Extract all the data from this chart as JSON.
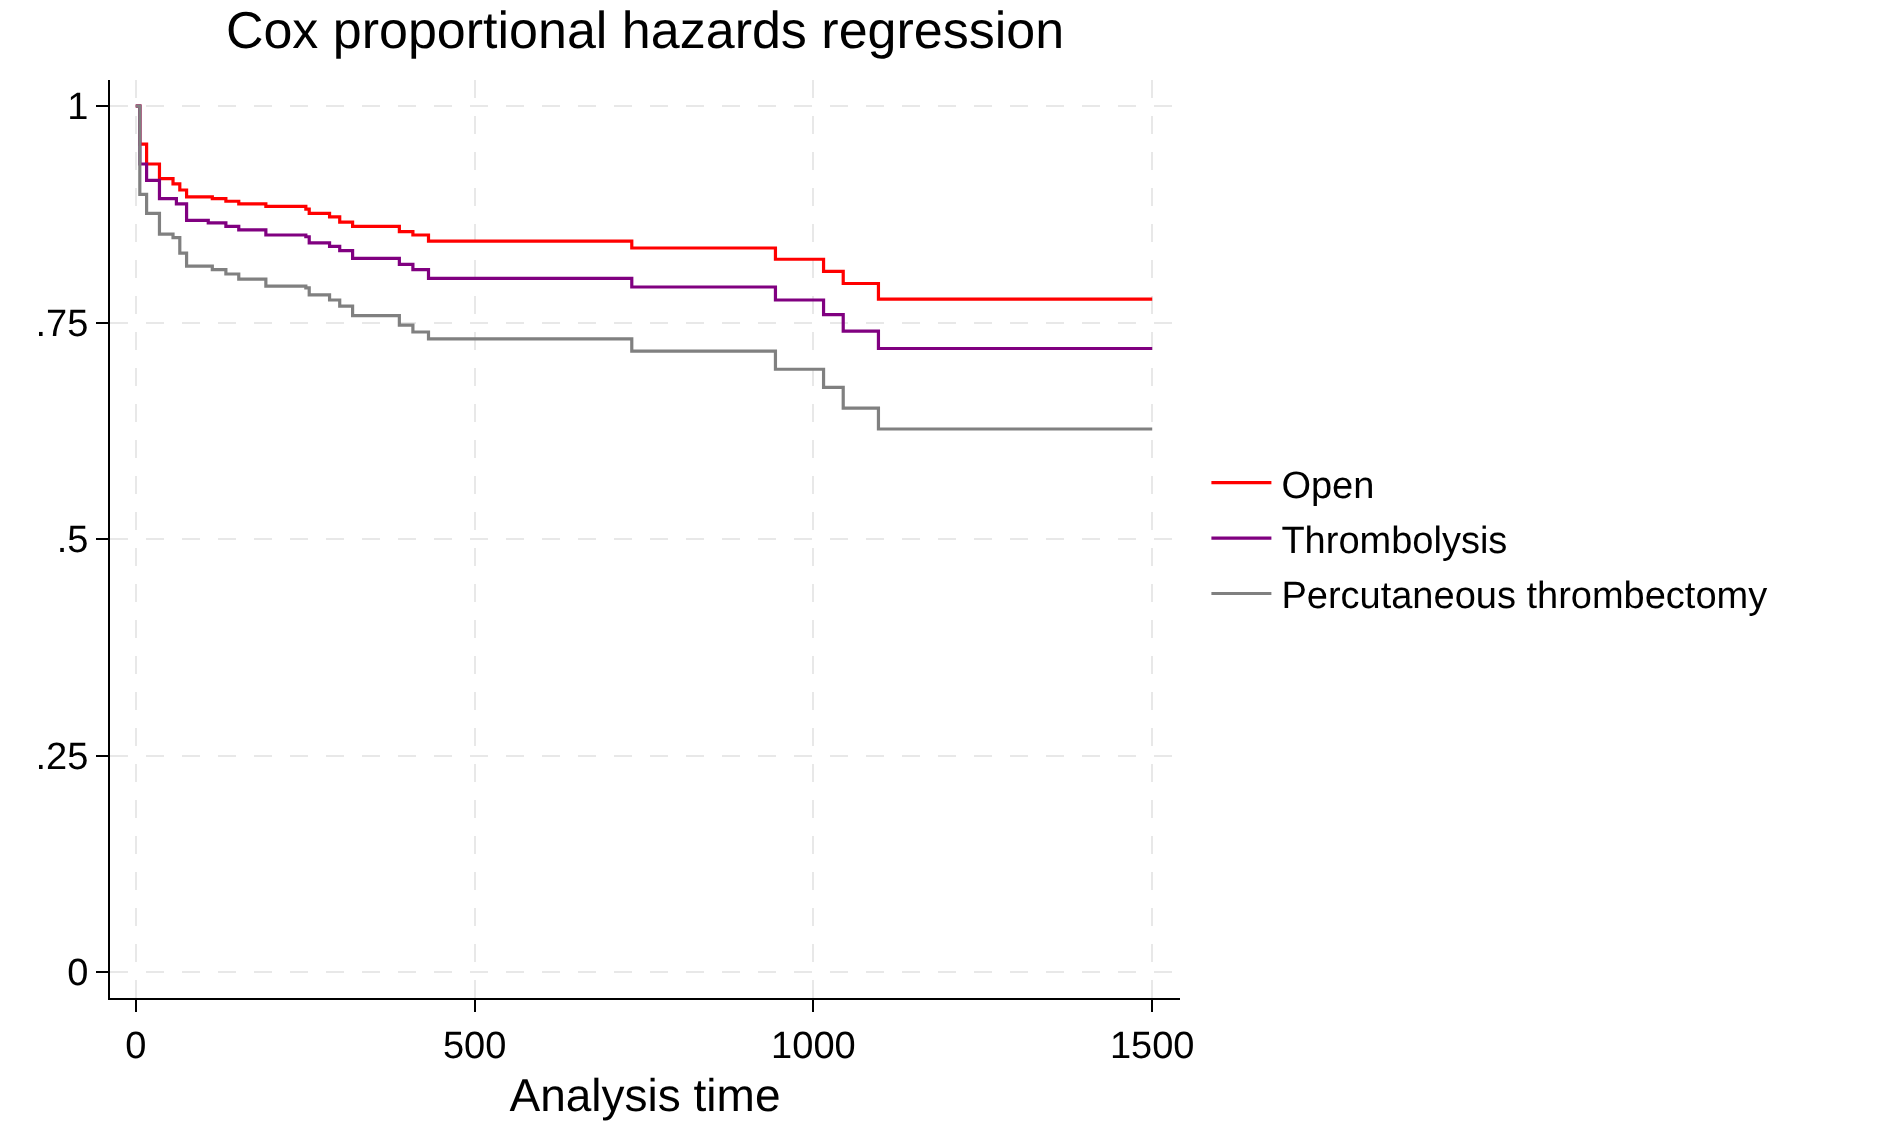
{
  "chart_data": {
    "type": "step",
    "title": "Cox proportional hazards regression",
    "xlabel": "Analysis time",
    "xlim": [
      -38,
      1541
    ],
    "xticks": [
      0,
      500,
      1000,
      1500
    ],
    "ylim": [
      -0.03,
      1.03
    ],
    "yticks": [
      {
        "value": 0,
        "label": "0"
      },
      {
        "value": 0.25,
        "label": ".25"
      },
      {
        "value": 0.5,
        "label": ".5"
      },
      {
        "value": 0.75,
        "label": ".75"
      },
      {
        "value": 1,
        "label": "1"
      }
    ],
    "grid": true,
    "legend": "right",
    "marker": "none",
    "line_style": "solid",
    "series": [
      {
        "name": "Open",
        "color": "#ff0000",
        "x": [
          0,
          6,
          16,
          35,
          55,
          65,
          75,
          113,
          133,
          152,
          192,
          251,
          256,
          286,
          301,
          320,
          389,
          409,
          432,
          732,
          944,
          1015,
          1044,
          1096,
          1500
        ],
        "values": [
          1,
          0.956,
          0.933,
          0.916,
          0.91,
          0.903,
          0.895,
          0.893,
          0.89,
          0.887,
          0.884,
          0.881,
          0.876,
          0.872,
          0.866,
          0.861,
          0.855,
          0.851,
          0.844,
          0.836,
          0.823,
          0.809,
          0.795,
          0.777,
          0.777
        ]
      },
      {
        "name": "Thrombolysis",
        "color": "#800080",
        "x": [
          0,
          6,
          16,
          35,
          60,
          75,
          107,
          133,
          152,
          192,
          251,
          256,
          286,
          301,
          320,
          389,
          409,
          432,
          732,
          944,
          1015,
          1044,
          1096,
          1500
        ],
        "values": [
          1,
          0.933,
          0.914,
          0.893,
          0.887,
          0.868,
          0.865,
          0.861,
          0.857,
          0.851,
          0.849,
          0.842,
          0.838,
          0.833,
          0.824,
          0.817,
          0.811,
          0.801,
          0.791,
          0.776,
          0.759,
          0.74,
          0.72,
          0.72
        ]
      },
      {
        "name": "Percutaneous thrombectomy",
        "color": "#808080",
        "x": [
          0,
          6,
          16,
          35,
          55,
          65,
          75,
          113,
          133,
          152,
          192,
          251,
          256,
          286,
          301,
          320,
          389,
          409,
          432,
          732,
          944,
          1015,
          1044,
          1096,
          1500
        ],
        "values": [
          1,
          0.898,
          0.876,
          0.852,
          0.848,
          0.83,
          0.815,
          0.811,
          0.806,
          0.8,
          0.792,
          0.79,
          0.782,
          0.776,
          0.769,
          0.758,
          0.747,
          0.739,
          0.731,
          0.717,
          0.696,
          0.675,
          0.651,
          0.627,
          0.627
        ]
      }
    ]
  }
}
